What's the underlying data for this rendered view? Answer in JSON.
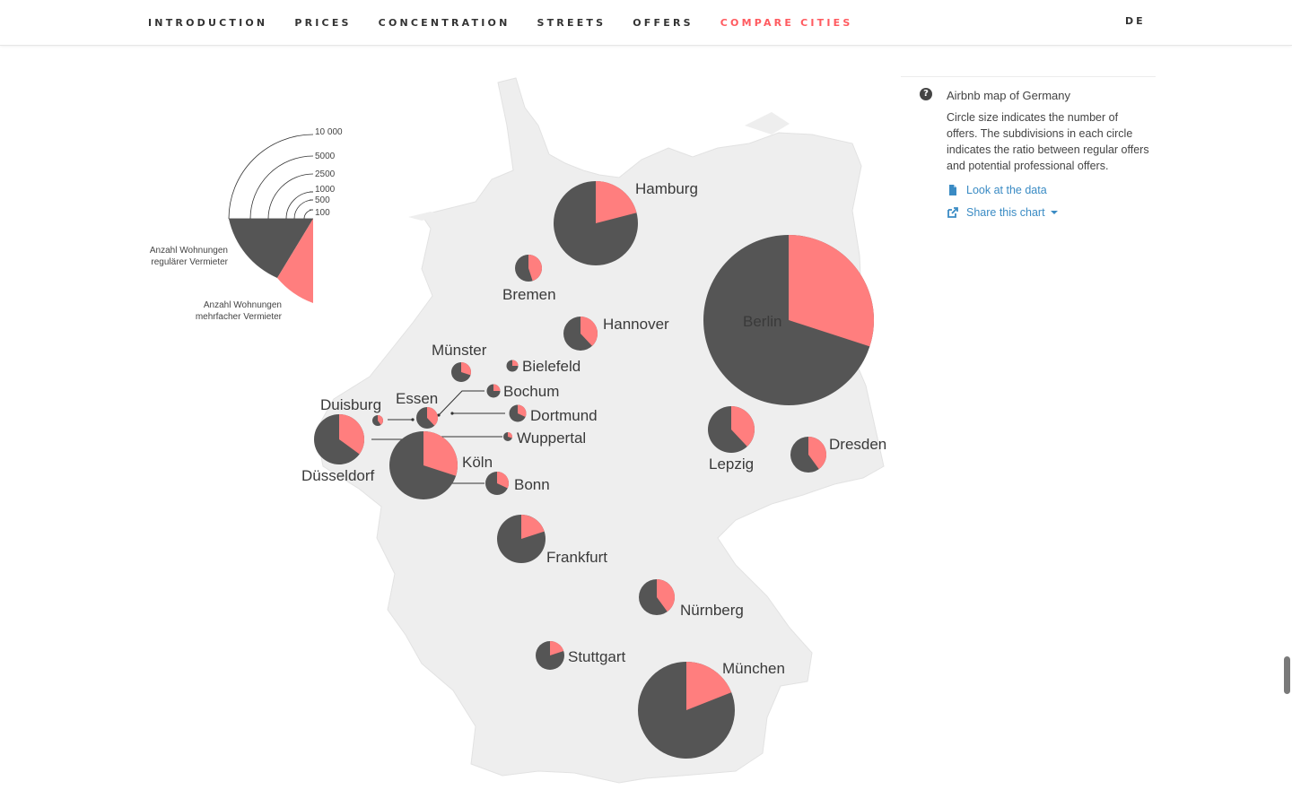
{
  "nav": {
    "items": [
      {
        "label": "INTRODUCTION",
        "key": "introduction",
        "active": false
      },
      {
        "label": "PRICES",
        "key": "prices",
        "active": false
      },
      {
        "label": "CONCENTRATION",
        "key": "concentration",
        "active": false
      },
      {
        "label": "STREETS",
        "key": "streets",
        "active": false
      },
      {
        "label": "OFFERS",
        "key": "offers",
        "active": false
      },
      {
        "label": "COMPARE CITIES",
        "key": "compare-cities",
        "active": true
      }
    ],
    "language": "DE"
  },
  "info": {
    "title": "Airbnb map of Germany",
    "description": "Circle size indicates the number of offers. The subdivisions in each circle indicates the ratio between regular offers and potential professional offers.",
    "data_link": "Look at the data",
    "share_link": "Share this chart"
  },
  "legend": {
    "sizes": [
      "10 000",
      "5000",
      "2500",
      "1000",
      "500",
      "100"
    ],
    "regular_label": [
      "Anzahl Wohnungen",
      "regulärer Vermieter"
    ],
    "multi_label": [
      "Anzahl Wohnungen",
      "mehrfacher Vermieter"
    ]
  },
  "colors": {
    "regular": "#555555",
    "multi": "#ff7e7e",
    "land": "#eeeeee",
    "accent": "#ff5a5f",
    "link": "#3a8bc4"
  },
  "chart_data": {
    "type": "pie-map",
    "series": [
      "regular",
      "multi"
    ],
    "cities": [
      {
        "name": "Hamburg",
        "multi_share": 0.21
      },
      {
        "name": "Bremen",
        "multi_share": 0.45
      },
      {
        "name": "Hannover",
        "multi_share": 0.38
      },
      {
        "name": "Berlin",
        "multi_share": 0.3
      },
      {
        "name": "Münster",
        "multi_share": 0.3
      },
      {
        "name": "Bielefeld",
        "multi_share": 0.25
      },
      {
        "name": "Bochum",
        "multi_share": 0.25
      },
      {
        "name": "Dortmund",
        "multi_share": 0.32
      },
      {
        "name": "Wuppertal",
        "multi_share": 0.3
      },
      {
        "name": "Essen",
        "multi_share": 0.38
      },
      {
        "name": "Duisburg",
        "multi_share": 0.4
      },
      {
        "name": "Düsseldorf",
        "multi_share": 0.35
      },
      {
        "name": "Köln",
        "multi_share": 0.3
      },
      {
        "name": "Bonn",
        "multi_share": 0.32
      },
      {
        "name": "Frankfurt",
        "multi_share": 0.2
      },
      {
        "name": "Lepzig",
        "multi_share": 0.38
      },
      {
        "name": "Dresden",
        "multi_share": 0.4
      },
      {
        "name": "Nürnberg",
        "multi_share": 0.4
      },
      {
        "name": "Stuttgart",
        "multi_share": 0.2
      },
      {
        "name": "München",
        "multi_share": 0.19
      }
    ]
  }
}
